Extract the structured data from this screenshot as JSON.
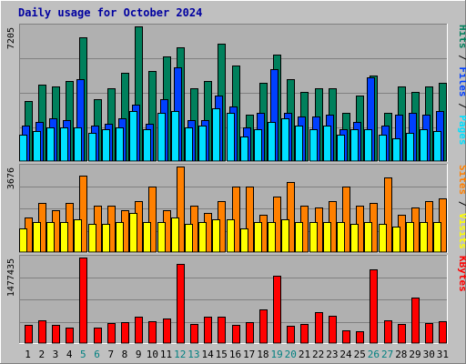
{
  "title": "Daily usage for October 2024",
  "colors": {
    "background": "#c0c0c0",
    "plot_background": "#b0b0b0",
    "hits": "#00805c",
    "files": "#0040ff",
    "pages": "#00e0ff",
    "visits": "#ffff00",
    "sites": "#ff8000",
    "kbytes": "#ff0000",
    "title": "#0000a0",
    "weekend_label": "#008080",
    "weekday_label": "#000000"
  },
  "chart_data": [
    {
      "type": "bar",
      "panel": "hits_files_pages",
      "y_max_label": "7205",
      "ylim": [
        0,
        7205
      ],
      "right_label": [
        {
          "text": "Hits",
          "color": "#00805c"
        },
        {
          "text": " / ",
          "color": "#000000"
        },
        {
          "text": "Files",
          "color": "#0040ff"
        },
        {
          "text": " / ",
          "color": "#000000"
        },
        {
          "text": "Pages",
          "color": "#00e0ff"
        }
      ],
      "categories": [
        "1",
        "2",
        "3",
        "4",
        "5",
        "6",
        "7",
        "8",
        "9",
        "10",
        "11",
        "12",
        "13",
        "14",
        "15",
        "16",
        "17",
        "18",
        "19",
        "20",
        "21",
        "22",
        "23",
        "24",
        "25",
        "26",
        "27",
        "28",
        "29",
        "30",
        "31"
      ],
      "series": [
        {
          "name": "Hits",
          "color": "#00805c",
          "values": [
            3200,
            4100,
            4000,
            4300,
            6600,
            3300,
            3900,
            4700,
            7205,
            4800,
            5600,
            6100,
            3900,
            4300,
            6300,
            5100,
            2500,
            4200,
            5700,
            4400,
            3700,
            3900,
            3900,
            2600,
            3500,
            4600,
            2600,
            4000,
            3700,
            4000,
            4200
          ]
        },
        {
          "name": "Files",
          "color": "#0040ff",
          "values": [
            1900,
            2100,
            2300,
            2200,
            4400,
            1900,
            2000,
            2300,
            3000,
            2000,
            3300,
            5000,
            2200,
            2200,
            3500,
            2900,
            1800,
            2600,
            4900,
            2600,
            2400,
            2400,
            2500,
            1700,
            2100,
            4500,
            1900,
            2500,
            2600,
            2500,
            2700
          ]
        },
        {
          "name": "Pages",
          "color": "#00e0ff",
          "values": [
            1400,
            1600,
            1800,
            1800,
            1800,
            1500,
            1700,
            1800,
            2700,
            1700,
            2600,
            2700,
            1800,
            1900,
            2800,
            2600,
            1300,
            1700,
            2100,
            2300,
            1900,
            1700,
            1900,
            1400,
            1700,
            1700,
            1400,
            1200,
            1500,
            1700,
            1600
          ]
        }
      ]
    },
    {
      "type": "bar",
      "panel": "visits_sites",
      "y_max_label": "3676",
      "ylim": [
        0,
        3676
      ],
      "right_label": [
        {
          "text": "Sites",
          "color": "#ff8000"
        },
        {
          "text": " / ",
          "color": "#000000"
        },
        {
          "text": "Visits",
          "color": "#ffff00"
        }
      ],
      "categories": [
        "1",
        "2",
        "3",
        "4",
        "5",
        "6",
        "7",
        "8",
        "9",
        "10",
        "11",
        "12",
        "13",
        "14",
        "15",
        "16",
        "17",
        "18",
        "19",
        "20",
        "21",
        "22",
        "23",
        "24",
        "25",
        "26",
        "27",
        "28",
        "29",
        "30",
        "31"
      ],
      "series": [
        {
          "name": "Sites",
          "color": "#ff8000",
          "values": [
            1500,
            2100,
            1800,
            2100,
            3300,
            2000,
            2000,
            1800,
            2200,
            2800,
            1800,
            3676,
            2000,
            1700,
            2200,
            2800,
            2800,
            1600,
            2400,
            3000,
            2000,
            1900,
            2200,
            2800,
            2000,
            2100,
            3200,
            1600,
            1900,
            2200,
            2300
          ]
        },
        {
          "name": "Visits",
          "color": "#ffff00",
          "values": [
            1000,
            1300,
            1300,
            1300,
            1400,
            1200,
            1200,
            1300,
            1700,
            1300,
            1300,
            1500,
            1200,
            1300,
            1400,
            1400,
            1000,
            1300,
            1300,
            1400,
            1300,
            1300,
            1300,
            1300,
            1200,
            1300,
            1200,
            1100,
            1300,
            1300,
            1300
          ]
        }
      ]
    },
    {
      "type": "bar",
      "panel": "kbytes",
      "y_max_label": "1477435",
      "ylim": [
        0,
        1477435
      ],
      "right_label": [
        {
          "text": "KBytes",
          "color": "#ff0000"
        }
      ],
      "categories": [
        "1",
        "2",
        "3",
        "4",
        "5",
        "6",
        "7",
        "8",
        "9",
        "10",
        "11",
        "12",
        "13",
        "14",
        "15",
        "16",
        "17",
        "18",
        "19",
        "20",
        "21",
        "22",
        "23",
        "24",
        "25",
        "26",
        "27",
        "28",
        "29",
        "30",
        "31"
      ],
      "series": [
        {
          "name": "KBytes",
          "color": "#ff0000",
          "values": [
            320000,
            390000,
            320000,
            270000,
            1477435,
            260000,
            350000,
            360000,
            460000,
            370000,
            420000,
            1360000,
            330000,
            460000,
            450000,
            320000,
            360000,
            580000,
            1170000,
            300000,
            330000,
            540000,
            470000,
            220000,
            210000,
            1280000,
            390000,
            330000,
            780000,
            340000,
            370000
          ]
        }
      ]
    }
  ],
  "x_axis": {
    "labels": [
      "1",
      "2",
      "3",
      "4",
      "5",
      "6",
      "7",
      "8",
      "9",
      "10",
      "11",
      "12",
      "13",
      "14",
      "15",
      "16",
      "17",
      "18",
      "19",
      "20",
      "21",
      "22",
      "23",
      "24",
      "25",
      "26",
      "27",
      "28",
      "29",
      "30",
      "31"
    ],
    "weekend_days": [
      "5",
      "6",
      "12",
      "13",
      "19",
      "20",
      "26",
      "27"
    ]
  }
}
